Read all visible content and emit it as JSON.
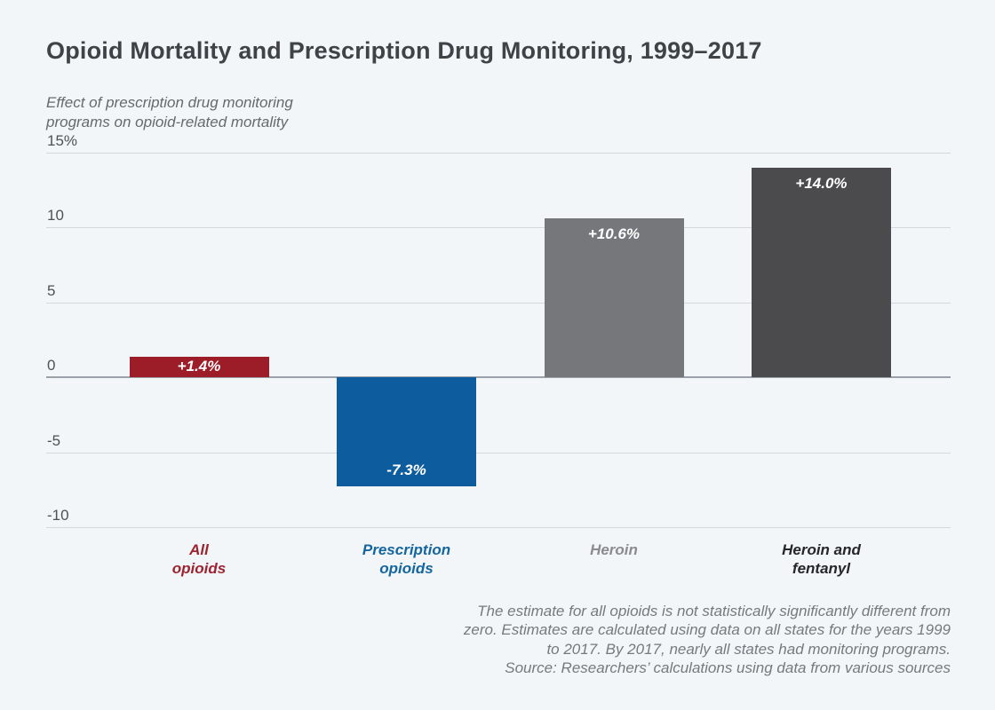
{
  "page": {
    "background_color": "#f2f6f9"
  },
  "chart_data": {
    "type": "bar",
    "title": "Opioid Mortality and Prescription Drug Monitoring, 1999–2017",
    "subtitle_lines": [
      "Effect of prescription drug monitoring",
      "programs on opioid-related mortality"
    ],
    "categories": [
      "All opioids",
      "Prescription opioids",
      "Heroin",
      "Heroin and fentanyl"
    ],
    "category_label_lines": [
      "All\nopioids",
      "Prescription\nopioids",
      "Heroin",
      "Heroin and\nfentanyl"
    ],
    "values": [
      1.4,
      -7.3,
      10.6,
      14.0
    ],
    "value_labels": [
      "+1.4%",
      "-7.3%",
      "+10.6%",
      "+14.0%"
    ],
    "bar_colors": [
      "#9c1c27",
      "#0c5c9e",
      "#76777a",
      "#4b4b4e"
    ],
    "category_label_colors": [
      "#9c2430",
      "#15659f",
      "#8a8c8f",
      "#27272b"
    ],
    "y_ticks": [
      {
        "value": 15,
        "label": "15%"
      },
      {
        "value": 10,
        "label": "10"
      },
      {
        "value": 5,
        "label": "5"
      },
      {
        "value": 0,
        "label": "0"
      },
      {
        "value": -5,
        "label": "-5"
      },
      {
        "value": -10,
        "label": "-10"
      }
    ],
    "ylim": [
      -10,
      15
    ],
    "xlabel": "",
    "ylabel": "Effect of prescription drug monitoring programs on opioid-related mortality",
    "grid": true,
    "legend": "none",
    "footnote_lines": [
      "The estimate for all opioids is not statistically significantly different from",
      "zero. Estimates are calculated using data on all states for the years 1999",
      "to 2017. By 2017, nearly all states had monitoring programs.",
      "Source: Researchers’ calculations using data from various sources"
    ]
  }
}
